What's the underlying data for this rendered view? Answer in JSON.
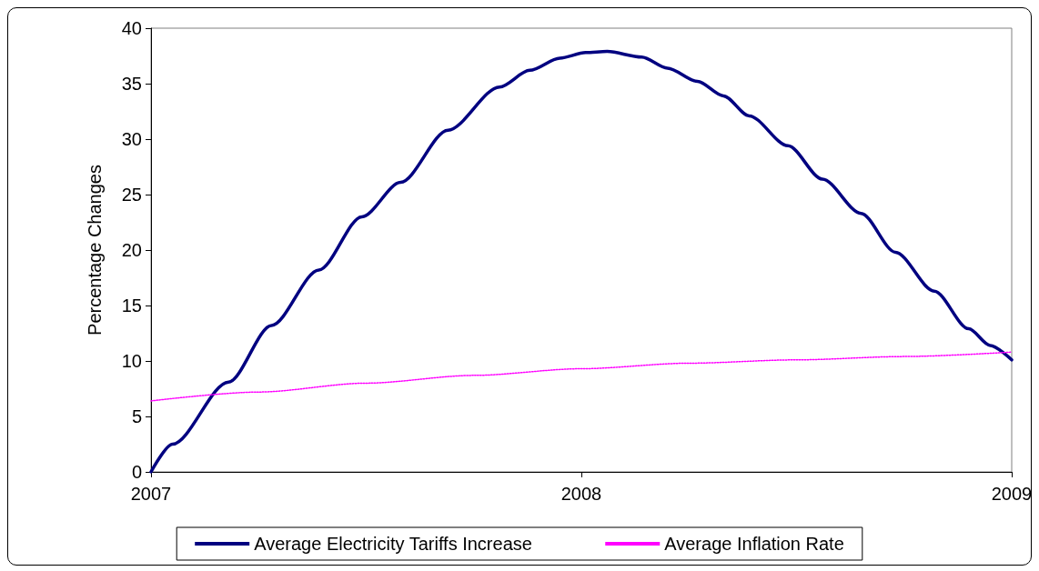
{
  "chart_data": {
    "type": "line",
    "ylabel": "Percentage Changes",
    "xlim": [
      2007,
      2009
    ],
    "xticks": [
      2007,
      2008,
      2009
    ],
    "ylim": [
      0,
      40
    ],
    "yticks": [
      0,
      5,
      10,
      15,
      20,
      25,
      30,
      35,
      40
    ],
    "grid": false,
    "legend": "bottom",
    "marker": "none",
    "series": [
      {
        "name": "Average Electricity Tariffs Increase",
        "color": "#000080",
        "line_style": "solid",
        "x": [
          2007,
          2007.05,
          2007.18,
          2007.28,
          2007.39,
          2007.49,
          2007.58,
          2007.69,
          2007.81,
          2007.88,
          2007.95,
          2008.01,
          2008.06,
          2008.14,
          2008.2,
          2008.27,
          2008.33,
          2008.39,
          2008.48,
          2008.56,
          2008.65,
          2008.73,
          2008.82,
          2008.9,
          2008.95,
          2009
        ],
        "values": [
          0,
          2.5,
          8.1,
          13.2,
          18.2,
          23,
          26.1,
          30.8,
          34.7,
          36.2,
          37.3,
          37.8,
          37.9,
          37.4,
          36.4,
          35.2,
          33.9,
          32.1,
          29.4,
          26.4,
          23.3,
          19.8,
          16.3,
          12.9,
          11.4,
          10.1
        ]
      },
      {
        "name": "Average Inflation Rate",
        "color": "#ff00ff",
        "line_style": "dotted",
        "x": [
          2007,
          2007.25,
          2007.5,
          2007.75,
          2008,
          2008.25,
          2008.5,
          2008.75,
          2009
        ],
        "values": [
          6.4,
          7.2,
          8,
          8.7,
          9.3,
          9.8,
          10.1,
          10.4,
          10.8
        ]
      }
    ]
  }
}
